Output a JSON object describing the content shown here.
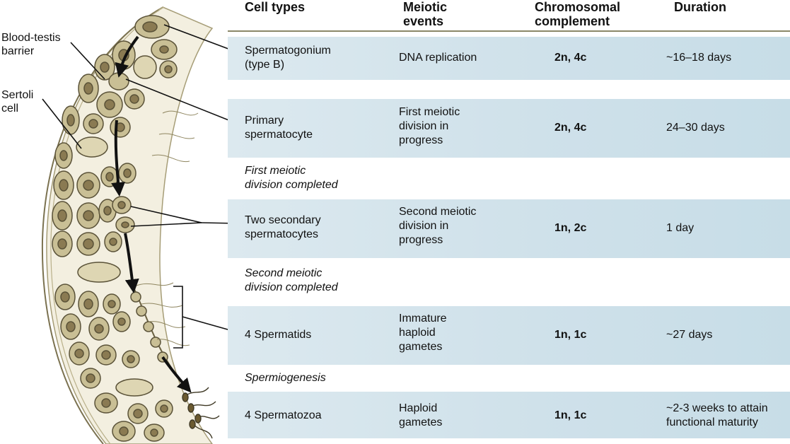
{
  "diagram_labels": {
    "blood_testis_barrier": "Blood-testis\nbarrier",
    "sertoli_cell": "Sertoli\ncell"
  },
  "table": {
    "headers": {
      "cell_types": "Cell types",
      "meiotic_events": "Meiotic\nevents",
      "chromosomal_complement": "Chromosomal\ncomplement",
      "duration": "Duration"
    },
    "rows": [
      {
        "cell_type": "Spermatogonium\n(type B)",
        "meiotic_event": "DNA replication",
        "complement": "2n, 4c",
        "duration": "~16–18 days"
      },
      {
        "cell_type": "Primary\nspermatocyte",
        "meiotic_event": "First meiotic\ndivision in\nprogress",
        "complement": "2n, 4c",
        "duration": "24–30 days"
      },
      {
        "cell_type": "Two secondary\nspermatocytes",
        "meiotic_event": "Second meiotic\ndivision in\nprogress",
        "complement": "1n, 2c",
        "duration": "1 day"
      },
      {
        "cell_type": "4 Spermatids",
        "meiotic_event": "Immature\nhaploid\ngametes",
        "complement": "1n, 1c",
        "duration": "~27 days"
      },
      {
        "cell_type": "4 Spermatozoa",
        "meiotic_event": "Haploid\ngametes",
        "complement": "1n, 1c",
        "duration": "~2-3 weeks to attain\nfunctional maturity"
      }
    ],
    "transitions": [
      "First meiotic\ndivision completed",
      "Second meiotic\ndivision completed",
      "Spermiogenesis"
    ]
  },
  "colors": {
    "row_fill": "#cfe1ea",
    "cell_fill": "#c9bf95",
    "nucleus_fill": "#8a7a52",
    "tissue_stroke": "#5a5238"
  }
}
